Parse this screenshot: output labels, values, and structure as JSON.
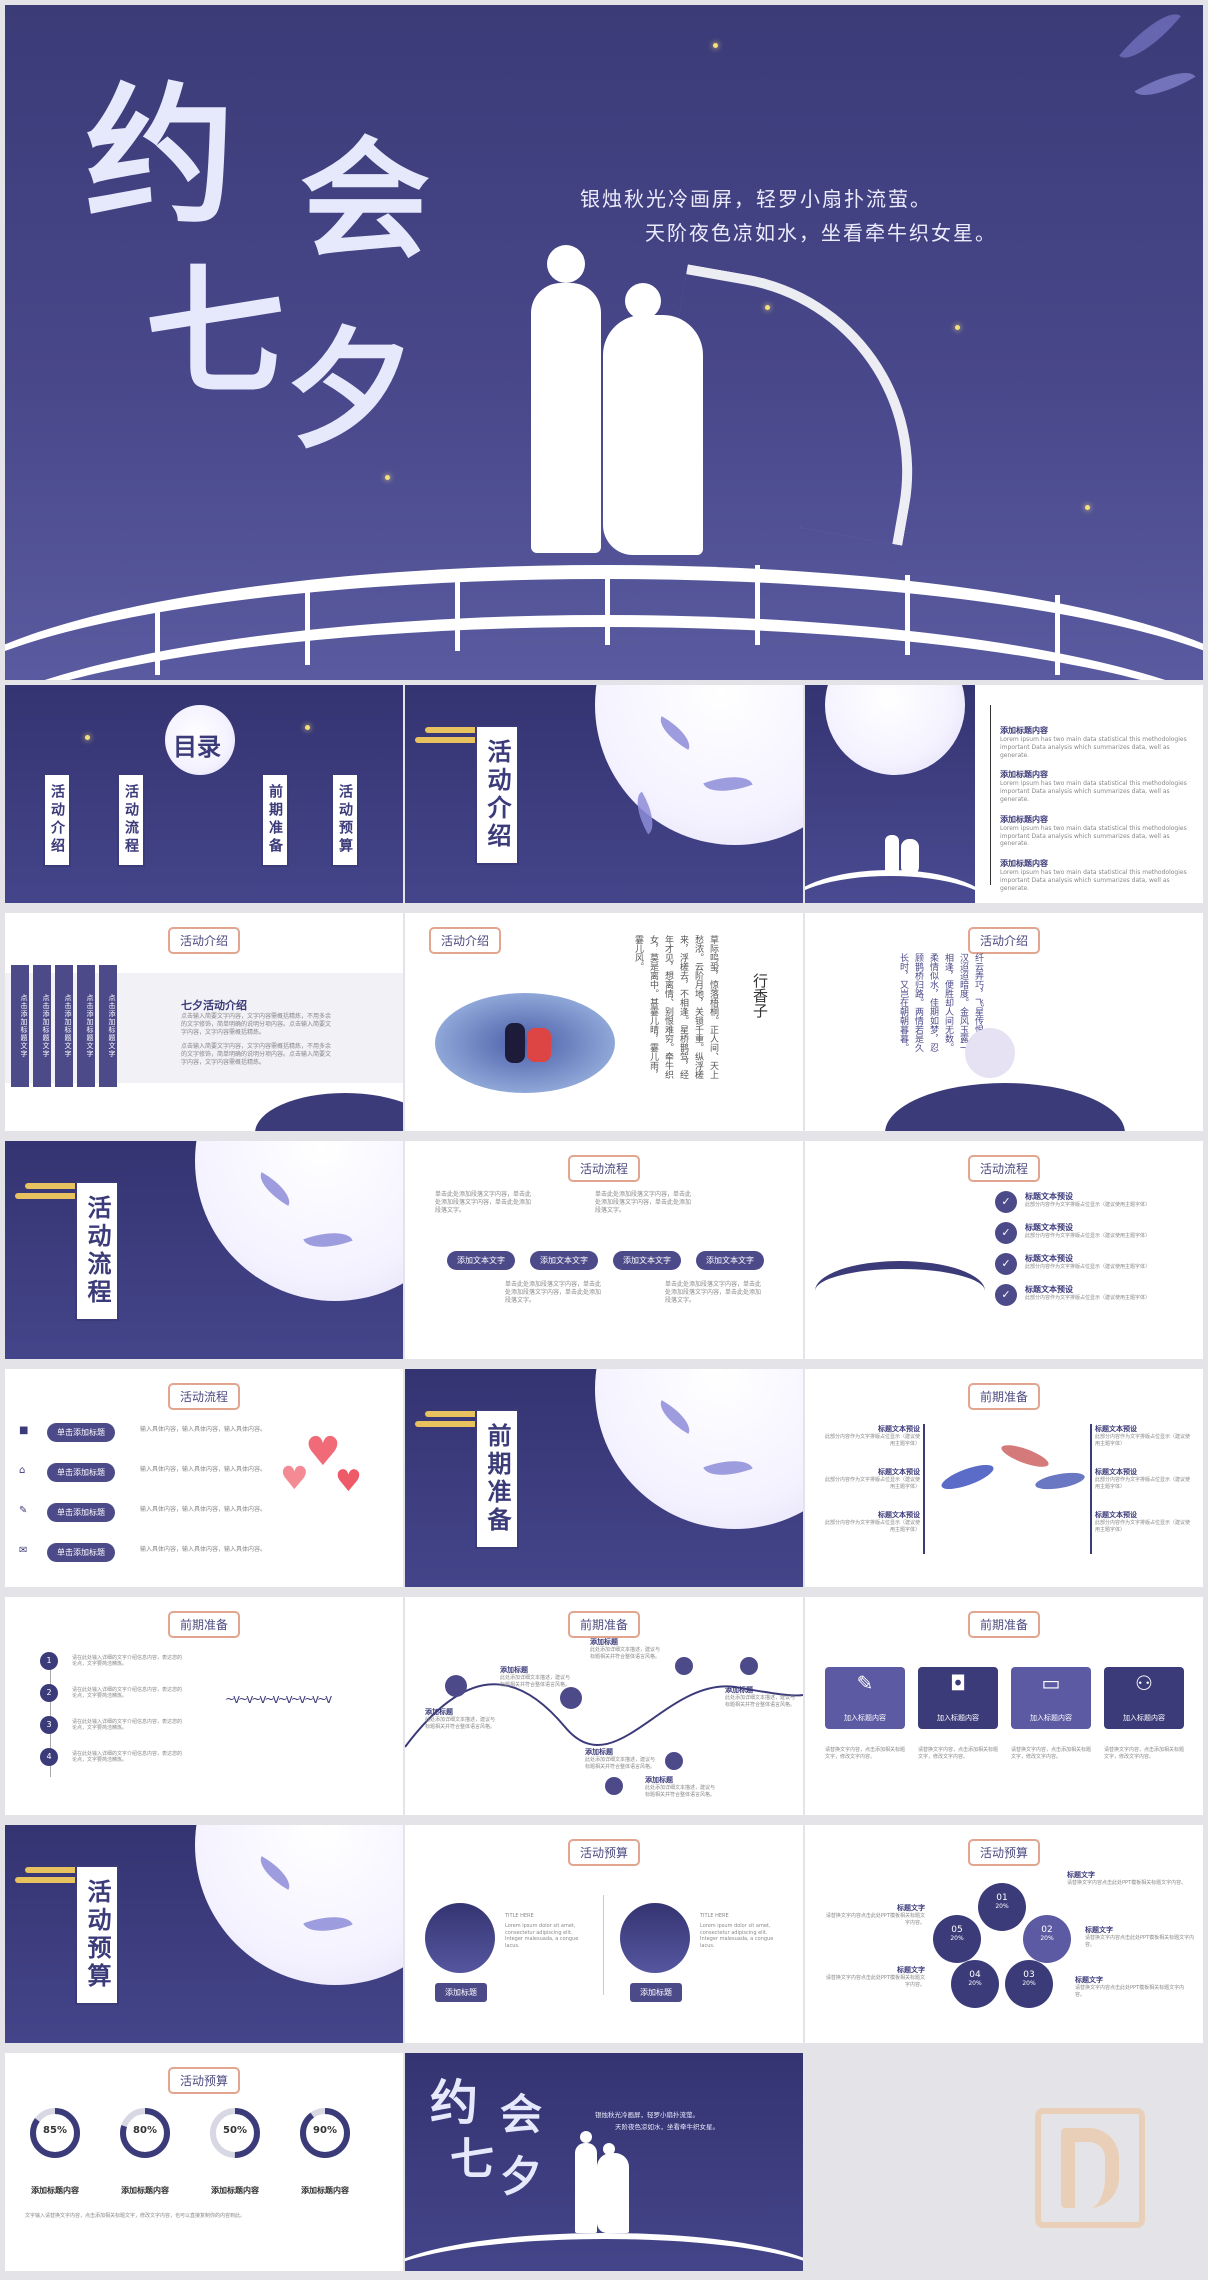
{
  "hero": {
    "title_chars": [
      "约",
      "会",
      "七",
      "夕"
    ],
    "poem_line1": "银烛秋光冷画屏，轻罗小扇扑流萤。",
    "poem_line2": "天阶夜色凉如水，坐看牵牛织女星。"
  },
  "toc": {
    "title": "目录",
    "items": [
      "活动介绍",
      "活动流程",
      "前期准备",
      "活动预算"
    ]
  },
  "section_intro": {
    "title": "活动介绍"
  },
  "section_flow": {
    "title": "活动流程"
  },
  "section_prep": {
    "title": "前期准备"
  },
  "section_budget": {
    "title": "活动预算"
  },
  "slide_list": {
    "items": [
      {
        "title": "添加标题内容",
        "body": "Lorem ipsum has two main data statistical this methodologies important Data analysis which summarizes data, well as generate."
      },
      {
        "title": "添加标题内容",
        "body": "Lorem ipsum has two main data statistical this methodologies important Data analysis which summarizes data, well as generate."
      },
      {
        "title": "添加标题内容",
        "body": "Lorem ipsum has two main data statistical this methodologies important Data analysis which summarizes data, well as generate."
      },
      {
        "title": "添加标题内容",
        "body": "Lorem ipsum has two main data statistical this methodologies important Data analysis which summarizes data, well as generate."
      }
    ]
  },
  "intro_slide": {
    "tag": "活动介绍",
    "heading": "七夕活动介绍",
    "para1": "点击输入简要文字内容，文字内容需概括精炼，不用多余的文字修饰，简单明确的说明分项内容。点击输入简要文字内容，文字内容需概括精炼。",
    "para2": "点击输入简要文字内容，文字内容需概括精炼，不用多余的文字修饰，简单明确的说明分项内容。点击输入简要文字内容，文字内容需概括精炼。",
    "tabs": [
      "点击添加标题文字",
      "点击添加标题文字",
      "点击添加标题文字",
      "点击添加标题文字",
      "点击添加标题文字"
    ]
  },
  "poem_slide": {
    "tag": "活动介绍",
    "title": "行香子",
    "columns": [
      "草际鸣蛩，惊落梧桐。",
      "正人间、天上愁浓。",
      "云阶月地，关锁千重。",
      "纵浮槎来，浮槎去，不相逢。",
      "星桥鹊驾，经年才见，",
      "想离情、别恨难穷。",
      "牵牛织女，莫是离中。",
      "甚霎儿晴，霎儿雨，霎儿风。"
    ]
  },
  "poem_slide2": {
    "tag": "活动介绍",
    "columns": [
      "纤云弄巧，飞星传恨，",
      "银汉迢迢暗度。",
      "金风玉露一相逢，",
      "便胜却人间无数。",
      "柔情似水，佳期如梦，",
      "忍顾鹊桥归路。",
      "两情若是久长时，",
      "又岂在朝朝暮暮。"
    ]
  },
  "flow_slide": {
    "tag": "活动流程",
    "text": "单击此处添加段落文字内容，单击此处添加段落文字内容，单击此处添加段落文字。",
    "buttons": [
      "添加文本文字",
      "添加文本文字",
      "添加文本文字",
      "添加文本文字"
    ]
  },
  "check_slide": {
    "tag": "活动流程",
    "items": [
      {
        "title": "标题文本预设",
        "body": "此部分内容作为文字排版占位显示（建议使用主题字体）"
      },
      {
        "title": "标题文本预设",
        "body": "此部分内容作为文字排版占位显示（建议使用主题字体）"
      },
      {
        "title": "标题文本预设",
        "body": "此部分内容作为文字排版占位显示（建议使用主题字体）"
      },
      {
        "title": "标题文本预设",
        "body": "此部分内容作为文字排版占位显示（建议使用主题字体）"
      }
    ]
  },
  "heart_slide": {
    "tag": "活动流程",
    "pill": "单击添加标题",
    "text": "输入具体内容，输入具体内容，输入具体内容。"
  },
  "birds_slide": {
    "tag": "前期准备",
    "title": "标题文本预设",
    "body": "此部分内容作为文字排版占位显示（建议使用主题字体）"
  },
  "numbered_slide": {
    "tag": "前期准备",
    "numbers": [
      "1",
      "2",
      "3",
      "4"
    ],
    "text": "请在此处输入详细的文字介绍信息内容，表达您的论点，文字要简洁精炼。"
  },
  "wave_slide": {
    "tag": "前期准备",
    "title": "添加标题",
    "body": "此处添加详细文本描述，建议与标题相关并符合整体语言风格。"
  },
  "icon_slide": {
    "tag": "前期准备",
    "label": "加入标题内容",
    "body": "请替换文字内容，点击添加相关标题文字，修改文字内容。"
  },
  "budget_circle_slide": {
    "tag": "活动预算",
    "button": "添加标题",
    "caption": "TITLE HERE",
    "body": "Lorem ipsum dolor sit amet, consectetur adipiscing elit. Integer malesuada, a congue lacus."
  },
  "petal_slide": {
    "tag": "活动预算",
    "petals": [
      {
        "num": "01",
        "pct": "20%"
      },
      {
        "num": "02",
        "pct": "20%"
      },
      {
        "num": "03",
        "pct": "20%"
      },
      {
        "num": "04",
        "pct": "20%"
      },
      {
        "num": "05",
        "pct": "20%"
      }
    ],
    "title": "标题文字",
    "body": "请替换文字内容点击此处PPT模板相关标题文字内容。"
  },
  "progress_slide": {
    "tag": "活动预算",
    "items": [
      {
        "pct": "85%",
        "value": 0.85,
        "title": "添加标题内容"
      },
      {
        "pct": "80%",
        "value": 0.8,
        "title": "添加标题内容"
      },
      {
        "pct": "50%",
        "value": 0.5,
        "title": "添加标题内容"
      },
      {
        "pct": "90%",
        "value": 0.9,
        "title": "添加标题内容"
      }
    ],
    "body": "文字输入请替换文字内容，点击添加相关标题文字，修改文字内容，也可以直接复制你的内容到此。"
  },
  "colors": {
    "navy": "#3c3b7a",
    "accent": "#e2a58f",
    "gold": "#e8c25e"
  }
}
